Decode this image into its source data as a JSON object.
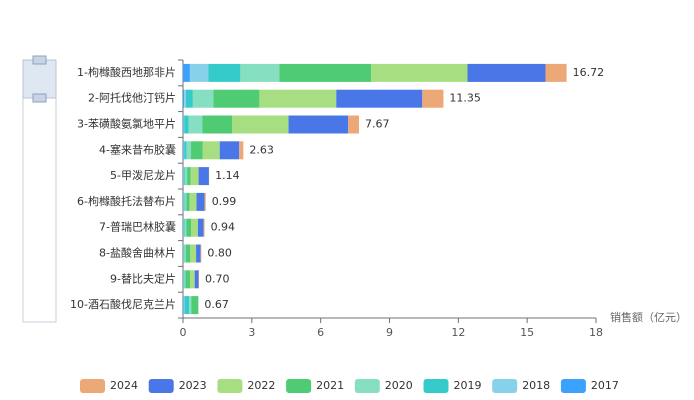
{
  "chart_data": {
    "type": "bar",
    "orientation": "horizontal",
    "stacked": true,
    "x_label": "销售额（亿元）",
    "categories": [
      "1-枸橼酸西地那非片",
      "2-阿托伐他汀钙片",
      "3-苯磺酸氨氯地平片",
      "4-塞来昔布胶囊",
      "5-甲泼尼龙片",
      "6-枸橼酸托法替布片",
      "7-普瑞巴林胶囊",
      "8-盐酸舍曲林片",
      "9-替比夫定片",
      "10-酒石酸伐尼克兰片"
    ],
    "series": [
      {
        "name": "2017",
        "color": "#3aa1ff",
        "values": [
          0.3,
          0.05,
          0.02,
          0.02,
          0.01,
          0.01,
          0.01,
          0.01,
          0.01,
          0.02
        ]
      },
      {
        "name": "2018",
        "color": "#88d1ea",
        "values": [
          0.8,
          0.08,
          0.03,
          0.03,
          0.02,
          0.02,
          0.02,
          0.02,
          0.02,
          0.05
        ]
      },
      {
        "name": "2019",
        "color": "#36cbcb",
        "values": [
          1.4,
          0.3,
          0.2,
          0.1,
          0.05,
          0.04,
          0.04,
          0.03,
          0.03,
          0.2
        ]
      },
      {
        "name": "2020",
        "color": "#85dfc0",
        "values": [
          1.7,
          0.9,
          0.6,
          0.2,
          0.1,
          0.08,
          0.08,
          0.06,
          0.05,
          0.1
        ]
      },
      {
        "name": "2021",
        "color": "#4ecb73",
        "values": [
          4.0,
          2.0,
          1.3,
          0.5,
          0.15,
          0.14,
          0.2,
          0.2,
          0.2,
          0.3
        ]
      },
      {
        "name": "2022",
        "color": "#a8de82",
        "values": [
          4.2,
          3.35,
          2.45,
          0.75,
          0.35,
          0.3,
          0.3,
          0.25,
          0.2,
          0
        ]
      },
      {
        "name": "2023",
        "color": "#4a77e8",
        "values": [
          3.4,
          3.75,
          2.6,
          0.85,
          0.45,
          0.35,
          0.25,
          0.2,
          0.17,
          0
        ]
      },
      {
        "name": "2024",
        "color": "#eda878",
        "values": [
          0.92,
          0.92,
          0.47,
          0.18,
          0.01,
          0.05,
          0.04,
          0.03,
          0.02,
          0
        ]
      }
    ],
    "value_labels": [
      "16.72",
      "11.35",
      "7.67",
      "2.63",
      "1.14",
      "0.99",
      "0.94",
      "0.80",
      "0.70",
      "0.67"
    ],
    "xlim": [
      0,
      18
    ],
    "xticks": [
      0,
      3,
      6,
      9,
      12,
      15,
      18
    ],
    "legend": "bottom"
  }
}
